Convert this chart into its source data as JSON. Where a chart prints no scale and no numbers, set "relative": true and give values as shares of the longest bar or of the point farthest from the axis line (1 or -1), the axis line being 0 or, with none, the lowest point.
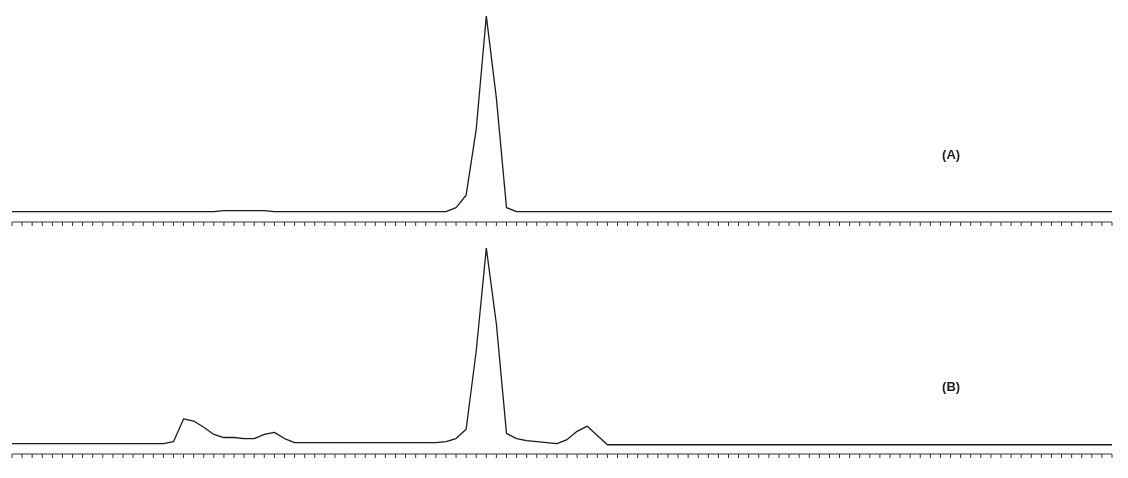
{
  "chart_data": [
    {
      "type": "line",
      "relative": true,
      "marker": "none",
      "legend": false,
      "grid": false,
      "color": "#1a1a1a",
      "annotations": [
        "(A)"
      ],
      "categories": [
        null,
        null,
        null,
        null,
        null,
        null,
        null,
        null,
        null,
        null,
        null,
        null,
        null,
        null,
        null,
        null,
        null,
        null,
        null,
        null,
        null,
        null,
        null,
        null,
        null,
        null,
        null,
        null,
        null,
        null,
        null,
        null,
        null,
        null,
        null,
        null,
        null,
        null,
        null,
        null,
        null,
        null,
        null,
        null,
        null,
        null,
        null,
        null,
        null,
        null,
        null,
        null,
        null,
        null,
        null,
        null,
        null,
        null,
        null,
        null,
        null,
        null,
        null,
        null,
        null,
        null,
        null,
        null,
        null,
        null,
        null,
        null,
        null,
        null,
        null,
        null,
        null,
        null,
        null,
        null,
        null,
        null,
        null,
        null,
        null,
        null,
        null,
        null,
        null,
        null,
        null,
        null,
        null,
        null,
        null,
        null,
        null,
        null,
        null,
        null,
        null,
        null,
        null,
        null,
        null,
        null,
        null,
        null,
        null,
        null
      ],
      "values": [
        0.05,
        0.05,
        0.05,
        0.05,
        0.05,
        0.05,
        0.05,
        0.05,
        0.05,
        0.05,
        0.05,
        0.05,
        0.05,
        0.05,
        0.05,
        0.05,
        0.05,
        0.05,
        0.05,
        0.05,
        0.05,
        0.055,
        0.055,
        0.055,
        0.055,
        0.055,
        0.05,
        0.05,
        0.05,
        0.05,
        0.05,
        0.05,
        0.05,
        0.05,
        0.05,
        0.05,
        0.05,
        0.05,
        0.05,
        0.05,
        0.05,
        0.05,
        0.05,
        0.05,
        0.07,
        0.13,
        0.45,
        1,
        0.6,
        0.07,
        0.05,
        0.05,
        0.05,
        0.05,
        0.05,
        0.05,
        0.05,
        0.05,
        0.05,
        0.05,
        0.05,
        0.05,
        0.05,
        0.05,
        0.05,
        0.05,
        0.05,
        0.05,
        0.05,
        0.05,
        0.05,
        0.05,
        0.05,
        0.05,
        0.05,
        0.05,
        0.05,
        0.05,
        0.05,
        0.05,
        0.05,
        0.05,
        0.05,
        0.05,
        0.05,
        0.05,
        0.05,
        0.05,
        0.05,
        0.05,
        0.05,
        0.05,
        0.05,
        0.05,
        0.05,
        0.05,
        0.05,
        0.05,
        0.05,
        0.05,
        0.05,
        0.05,
        0.05,
        0.05,
        0.05,
        0.05,
        0.05,
        0.05,
        0.05,
        0.05
      ]
    },
    {
      "type": "line",
      "relative": true,
      "marker": "none",
      "legend": false,
      "grid": false,
      "color": "#1a1a1a",
      "annotations": [
        "(B)"
      ],
      "categories": [
        null,
        null,
        null,
        null,
        null,
        null,
        null,
        null,
        null,
        null,
        null,
        null,
        null,
        null,
        null,
        null,
        null,
        null,
        null,
        null,
        null,
        null,
        null,
        null,
        null,
        null,
        null,
        null,
        null,
        null,
        null,
        null,
        null,
        null,
        null,
        null,
        null,
        null,
        null,
        null,
        null,
        null,
        null,
        null,
        null,
        null,
        null,
        null,
        null,
        null,
        null,
        null,
        null,
        null,
        null,
        null,
        null,
        null,
        null,
        null,
        null,
        null,
        null,
        null,
        null,
        null,
        null,
        null,
        null,
        null,
        null,
        null,
        null,
        null,
        null,
        null,
        null,
        null,
        null,
        null,
        null,
        null,
        null,
        null,
        null,
        null,
        null,
        null,
        null,
        null,
        null,
        null,
        null,
        null,
        null,
        null,
        null,
        null,
        null,
        null,
        null,
        null,
        null,
        null,
        null,
        null,
        null,
        null,
        null,
        null
      ],
      "values": [
        0.05,
        0.05,
        0.05,
        0.05,
        0.05,
        0.05,
        0.05,
        0.05,
        0.05,
        0.05,
        0.05,
        0.05,
        0.05,
        0.05,
        0.05,
        0.05,
        0.06,
        0.17,
        0.16,
        0.13,
        0.095,
        0.08,
        0.08,
        0.075,
        0.075,
        0.095,
        0.105,
        0.075,
        0.055,
        0.055,
        0.055,
        0.055,
        0.055,
        0.055,
        0.055,
        0.055,
        0.055,
        0.055,
        0.055,
        0.055,
        0.055,
        0.055,
        0.055,
        0.06,
        0.075,
        0.12,
        0.5,
        1,
        0.63,
        0.1,
        0.075,
        0.065,
        0.06,
        0.055,
        0.05,
        0.07,
        0.11,
        0.135,
        0.09,
        0.045,
        0.045,
        0.045,
        0.045,
        0.045,
        0.045,
        0.045,
        0.045,
        0.045,
        0.045,
        0.045,
        0.045,
        0.045,
        0.045,
        0.045,
        0.045,
        0.045,
        0.045,
        0.045,
        0.045,
        0.045,
        0.045,
        0.045,
        0.045,
        0.045,
        0.045,
        0.045,
        0.045,
        0.045,
        0.045,
        0.045,
        0.045,
        0.045,
        0.045,
        0.045,
        0.045,
        0.045,
        0.045,
        0.045,
        0.045,
        0.045,
        0.045,
        0.045,
        0.045,
        0.045,
        0.045,
        0.045,
        0.045,
        0.045,
        0.045,
        0.045
      ]
    }
  ]
}
